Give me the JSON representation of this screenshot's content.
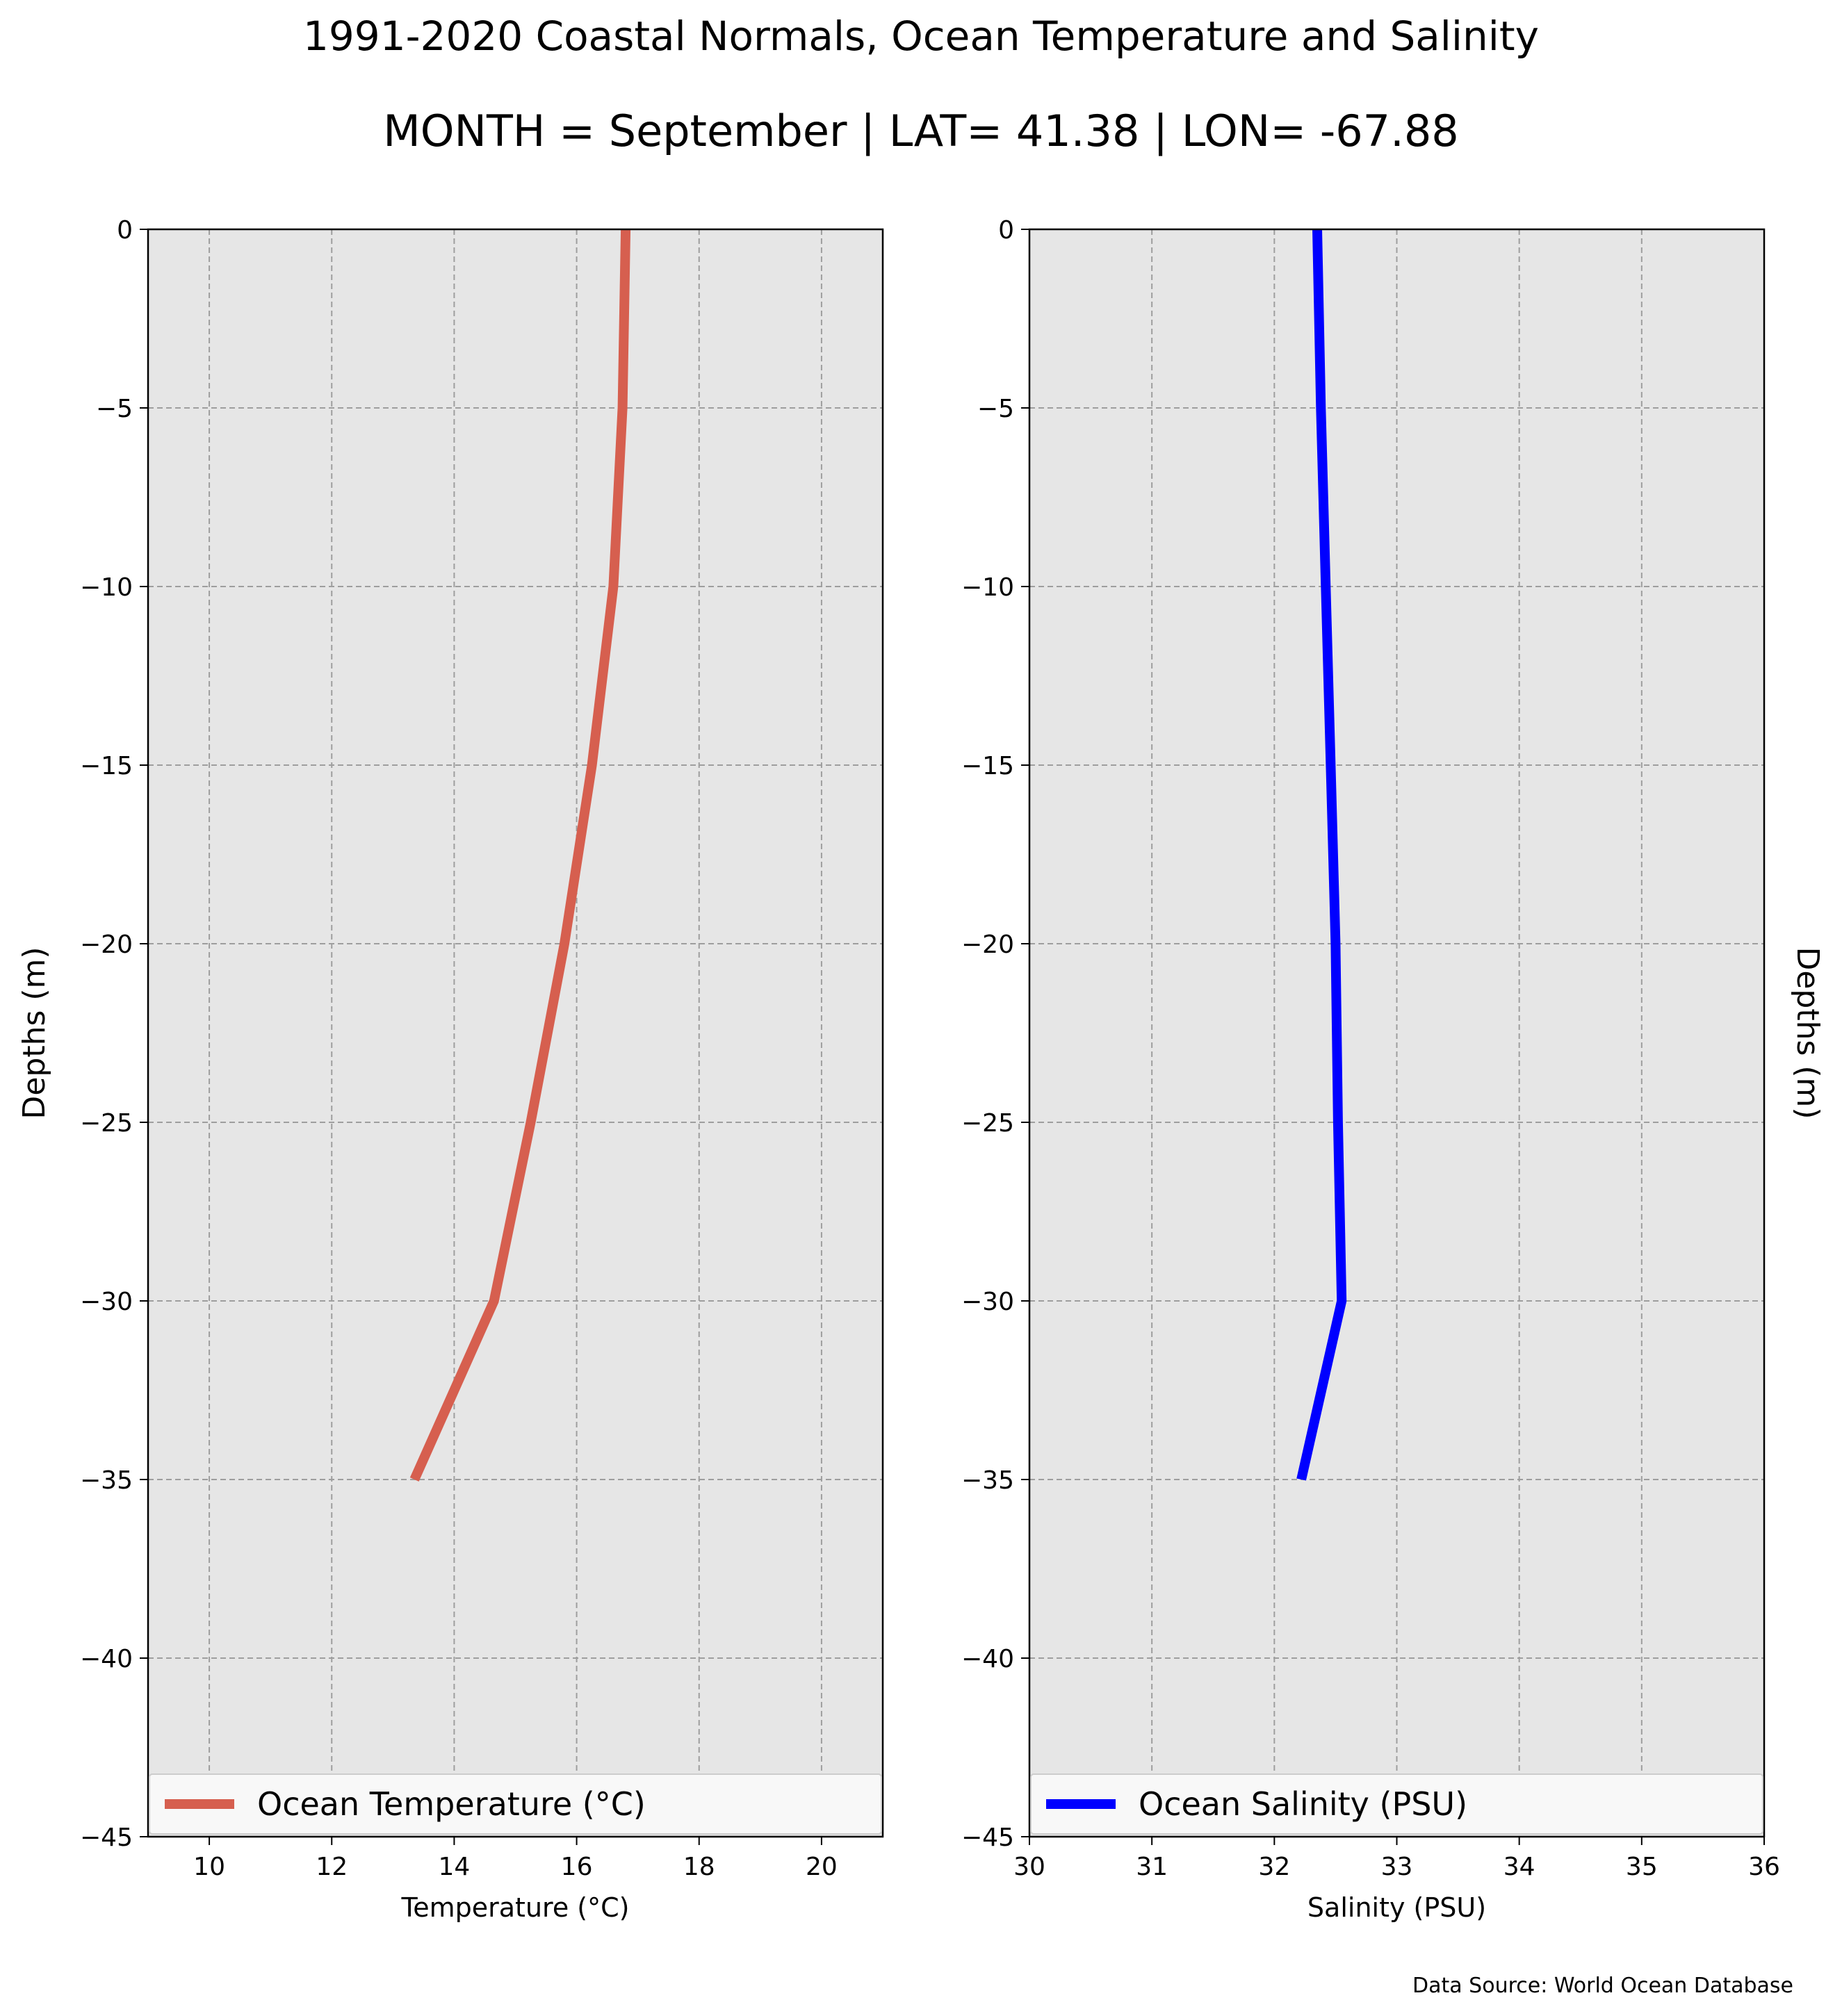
{
  "titles": {
    "line1": "1991-2020 Coastal Normals, Ocean Temperature and Salinity",
    "line2": "MONTH = September | LAT= 41.38 | LON= -67.88"
  },
  "source_note": "Data Source: World Ocean Database",
  "colors": {
    "plot_background": "#e6e6e6",
    "grid": "#9e9e9e",
    "temperature_line": "#d65f4f",
    "salinity_line": "#0000ff"
  },
  "chart_data": [
    {
      "type": "line",
      "xlabel": "Temperature ($^\\circ$C)",
      "xlabel_display": "Temperature (°C)",
      "ylabel": "Depths (m)",
      "ylabel_side": "left",
      "xlim": [
        9,
        21
      ],
      "ylim": [
        -45,
        0
      ],
      "x_ticks": [
        10,
        12,
        14,
        16,
        18,
        20
      ],
      "x_tick_labels": [
        "10",
        "12",
        "14",
        "16",
        "18",
        "20"
      ],
      "y_ticks": [
        0,
        -5,
        -10,
        -15,
        -20,
        -25,
        -30,
        -35,
        -40,
        -45
      ],
      "y_tick_labels": [
        "0",
        "−5",
        "−10",
        "−15",
        "−20",
        "−25",
        "−30",
        "−35",
        "−40",
        "−45"
      ],
      "grid": true,
      "legend_position": "lower-center",
      "series": [
        {
          "name": "Ocean Temperature (°C)",
          "color": "#d65f4f",
          "x": [
            16.8,
            16.75,
            16.6,
            16.25,
            15.8,
            15.25,
            14.65,
            13.35
          ],
          "y": [
            0,
            -5,
            -10,
            -15,
            -20,
            -25,
            -30,
            -35
          ]
        }
      ]
    },
    {
      "type": "line",
      "xlabel": "Salinity (PSU)",
      "ylabel": "Depths (m)",
      "ylabel_side": "right",
      "xlim": [
        30,
        36
      ],
      "ylim": [
        -45,
        0
      ],
      "x_ticks": [
        30,
        31,
        32,
        33,
        34,
        35,
        36
      ],
      "x_tick_labels": [
        "30",
        "31",
        "32",
        "33",
        "34",
        "35",
        "36"
      ],
      "y_ticks": [
        0,
        -5,
        -10,
        -15,
        -20,
        -25,
        -30,
        -35,
        -40,
        -45
      ],
      "y_tick_labels": [
        "0",
        "−5",
        "−10",
        "−15",
        "−20",
        "−25",
        "−30",
        "−35",
        "−40",
        "−45"
      ],
      "grid": true,
      "legend_position": "lower-center",
      "series": [
        {
          "name": "Ocean Salinity (PSU)",
          "color": "#0000ff",
          "x": [
            32.35,
            32.38,
            32.42,
            32.46,
            32.5,
            32.52,
            32.55,
            32.22
          ],
          "y": [
            0,
            -5,
            -10,
            -15,
            -20,
            -25,
            -30,
            -35
          ]
        }
      ]
    }
  ]
}
